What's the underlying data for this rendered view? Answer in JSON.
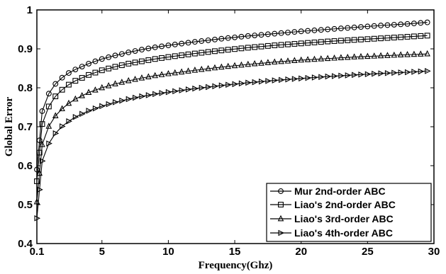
{
  "chart_data": {
    "type": "line",
    "title": "",
    "xlabel": "Frequency(Ghz)",
    "ylabel": "Global Error",
    "xlim": [
      0.1,
      30
    ],
    "ylim": [
      0.4,
      1.0
    ],
    "xticks": [
      {
        "value": 0.1,
        "label": "0.1"
      },
      {
        "value": 5,
        "label": "5"
      },
      {
        "value": 10,
        "label": "10"
      },
      {
        "value": 15,
        "label": "15"
      },
      {
        "value": 20,
        "label": "20"
      },
      {
        "value": 25,
        "label": "25"
      },
      {
        "value": 30,
        "label": "30"
      }
    ],
    "yticks": [
      {
        "value": 0.4,
        "label": "0.4"
      },
      {
        "value": 0.5,
        "label": "0.5"
      },
      {
        "value": 0.6,
        "label": "0.6"
      },
      {
        "value": 0.7,
        "label": "0.7"
      },
      {
        "value": 0.8,
        "label": "0.8"
      },
      {
        "value": 0.9,
        "label": "0.9"
      },
      {
        "value": 1.0,
        "label": "1"
      }
    ],
    "grid": false,
    "legend_position": "bottom-right",
    "x": [
      0.1,
      0.5,
      1.0,
      1.5,
      2.0,
      2.5,
      3.0,
      4.0,
      5.0,
      6.0,
      7.0,
      8.0,
      9.0,
      10.0,
      12.0,
      14.0,
      16.0,
      18.0,
      20.0,
      22.0,
      24.0,
      26.0,
      28.0,
      29.5
    ],
    "series": [
      {
        "name": "Mur 2nd-order ABC",
        "marker": "circle",
        "color": "#000000",
        "values": [
          0.59,
          0.74,
          0.785,
          0.81,
          0.826,
          0.838,
          0.847,
          0.862,
          0.874,
          0.883,
          0.891,
          0.898,
          0.904,
          0.909,
          0.918,
          0.926,
          0.933,
          0.939,
          0.945,
          0.95,
          0.955,
          0.96,
          0.964,
          0.968
        ]
      },
      {
        "name": "Liao's 2nd-order ABC",
        "marker": "square",
        "color": "#000000",
        "values": [
          0.56,
          0.707,
          0.752,
          0.778,
          0.795,
          0.808,
          0.818,
          0.833,
          0.845,
          0.854,
          0.862,
          0.868,
          0.874,
          0.879,
          0.888,
          0.896,
          0.903,
          0.909,
          0.914,
          0.919,
          0.923,
          0.927,
          0.931,
          0.934
        ]
      },
      {
        "name": "Liao's 3rd-order ABC",
        "marker": "triangle-up",
        "color": "#000000",
        "values": [
          0.507,
          0.654,
          0.701,
          0.728,
          0.746,
          0.76,
          0.771,
          0.788,
          0.8,
          0.81,
          0.818,
          0.825,
          0.831,
          0.836,
          0.845,
          0.853,
          0.86,
          0.866,
          0.871,
          0.875,
          0.879,
          0.882,
          0.885,
          0.887
        ]
      },
      {
        "name": "Liao's 4th-order ABC",
        "marker": "triangle-right",
        "color": "#000000",
        "values": [
          0.465,
          0.612,
          0.657,
          0.683,
          0.701,
          0.714,
          0.725,
          0.741,
          0.753,
          0.763,
          0.771,
          0.778,
          0.784,
          0.789,
          0.798,
          0.806,
          0.813,
          0.819,
          0.824,
          0.829,
          0.833,
          0.837,
          0.84,
          0.843
        ]
      }
    ]
  }
}
